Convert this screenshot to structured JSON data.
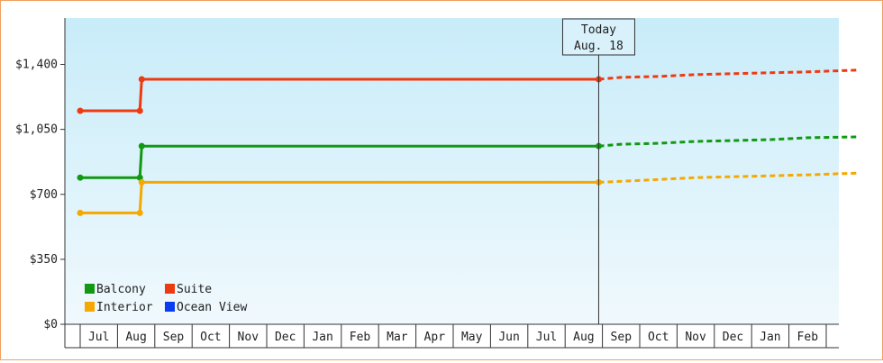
{
  "chart_data": {
    "type": "line",
    "y_ticks": [
      {
        "value": 0,
        "label": "$0"
      },
      {
        "value": 350,
        "label": "$350"
      },
      {
        "value": 700,
        "label": "$700"
      },
      {
        "value": 1050,
        "label": "$1,050"
      },
      {
        "value": 1400,
        "label": "$1,400"
      }
    ],
    "ylim": [
      0,
      1650
    ],
    "x_months": [
      "Jul",
      "Aug",
      "Sep",
      "Oct",
      "Nov",
      "Dec",
      "Jan",
      "Feb",
      "Mar",
      "Apr",
      "May",
      "Jun",
      "Jul",
      "Aug",
      "Sep",
      "Oct",
      "Nov",
      "Dec",
      "Jan",
      "Feb"
    ],
    "today": {
      "line1": "Today",
      "line2": "Aug. 18"
    },
    "series": [
      {
        "name": "Balcony",
        "color": "#119911",
        "actual": [
          [
            0,
            790
          ],
          [
            1.6,
            790
          ],
          [
            1.65,
            960
          ],
          [
            13.9,
            960
          ]
        ],
        "projected": [
          [
            13.9,
            960
          ],
          [
            14.5,
            970
          ],
          [
            15.5,
            975
          ],
          [
            16.5,
            985
          ],
          [
            17.5,
            990
          ],
          [
            18.5,
            995
          ],
          [
            19.5,
            1005
          ],
          [
            20.9,
            1010
          ]
        ]
      },
      {
        "name": "Suite",
        "color": "#ee3a10",
        "actual": [
          [
            0,
            1150
          ],
          [
            1.6,
            1150
          ],
          [
            1.65,
            1320
          ],
          [
            13.9,
            1320
          ]
        ],
        "projected": [
          [
            13.9,
            1320
          ],
          [
            14.5,
            1330
          ],
          [
            15.5,
            1335
          ],
          [
            16.5,
            1345
          ],
          [
            17.5,
            1350
          ],
          [
            18.5,
            1355
          ],
          [
            19.5,
            1360
          ],
          [
            20.9,
            1370
          ]
        ]
      },
      {
        "name": "Interior",
        "color": "#f5a800",
        "actual": [
          [
            0,
            600
          ],
          [
            1.6,
            600
          ],
          [
            1.65,
            765
          ],
          [
            13.9,
            765
          ]
        ],
        "projected": [
          [
            13.9,
            765
          ],
          [
            14.5,
            770
          ],
          [
            15.5,
            780
          ],
          [
            16.5,
            790
          ],
          [
            17.5,
            795
          ],
          [
            18.5,
            800
          ],
          [
            19.5,
            805
          ],
          [
            20.9,
            815
          ]
        ]
      },
      {
        "name": "Ocean View",
        "color": "#0a3cf0",
        "actual": [],
        "projected": []
      }
    ],
    "legend": [
      {
        "name": "Balcony",
        "color": "#119911"
      },
      {
        "name": "Suite",
        "color": "#ee3a10"
      },
      {
        "name": "Interior",
        "color": "#f5a800"
      },
      {
        "name": "Ocean View",
        "color": "#0a3cf0"
      }
    ],
    "legend_position": "bottom-left",
    "grid": false
  }
}
